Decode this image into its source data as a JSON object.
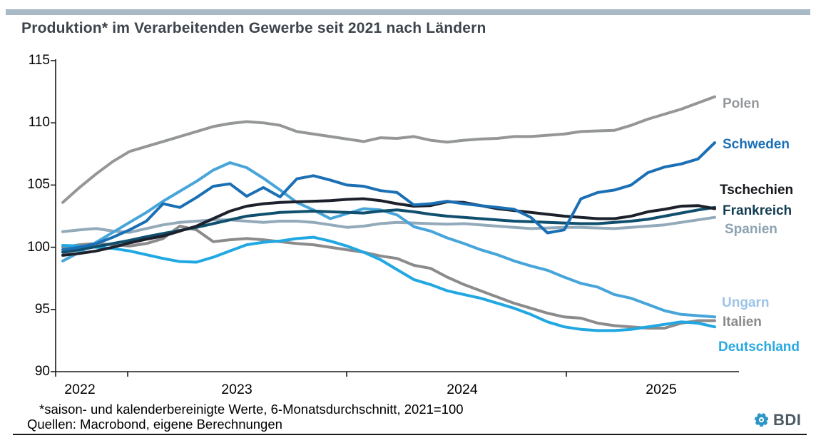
{
  "header": {
    "title": "Produktion* im Verarbeitenden Gewerbe seit 2021 nach Ländern",
    "title_color": "#3d444b",
    "accent_bar_color": "#a7bac5"
  },
  "chart_data": {
    "type": "line",
    "title": "Produktion* im Verarbeitenden Gewerbe seit 2021 nach Ländern",
    "x": {
      "start": "2021-12",
      "freq": "monthly",
      "points": 40
    },
    "x_tick_labels": [
      "2022",
      "2023",
      "2024",
      "2025"
    ],
    "ylim": [
      90,
      115
    ],
    "y_ticks": [
      115,
      110,
      105,
      100,
      95,
      90
    ],
    "grid": false,
    "legend_position": "right-of-lines",
    "axis_color": "#1a1a1a",
    "series": [
      {
        "name": "Polen",
        "color": "#949698",
        "label_color": "#95989b",
        "values": [
          103.6,
          104.8,
          105.9,
          106.9,
          107.7,
          108.1,
          108.5,
          108.9,
          109.3,
          109.7,
          109.95,
          110.1,
          110.0,
          109.8,
          109.3,
          109.1,
          108.9,
          108.7,
          108.5,
          108.8,
          108.75,
          108.9,
          108.6,
          108.45,
          108.6,
          108.7,
          108.75,
          108.9,
          108.9,
          109.0,
          109.1,
          109.3,
          109.35,
          109.4,
          109.8,
          110.3,
          110.7,
          111.1,
          111.6,
          112.1
        ]
      },
      {
        "name": "Schweden",
        "color": "#1b6fb5",
        "label_color": "#1b6fb5",
        "values": [
          99.8,
          100.0,
          100.3,
          100.8,
          101.4,
          102.1,
          103.5,
          103.2,
          104.0,
          104.9,
          105.1,
          104.1,
          104.8,
          104.05,
          105.5,
          105.75,
          105.4,
          105.0,
          104.9,
          104.55,
          104.4,
          103.4,
          103.5,
          103.7,
          103.5,
          103.35,
          103.2,
          103.05,
          102.4,
          101.15,
          101.4,
          103.9,
          104.4,
          104.6,
          105.0,
          106.0,
          106.45,
          106.7,
          107.1,
          108.4
        ]
      },
      {
        "name": "Tschechien",
        "color": "#1c212b",
        "label_color": "#16181d",
        "values": [
          99.35,
          99.5,
          99.7,
          100.0,
          100.35,
          100.65,
          100.9,
          101.3,
          101.7,
          102.3,
          102.9,
          103.3,
          103.5,
          103.6,
          103.65,
          103.7,
          103.75,
          103.85,
          103.9,
          103.75,
          103.5,
          103.3,
          103.35,
          103.65,
          103.6,
          103.35,
          103.1,
          102.95,
          102.8,
          102.65,
          102.5,
          102.4,
          102.3,
          102.3,
          102.5,
          102.85,
          103.05,
          103.3,
          103.35,
          103.1
        ]
      },
      {
        "name": "Frankreich",
        "color": "#10506e",
        "label_color": "#123c52",
        "values": [
          99.6,
          99.8,
          100.05,
          100.3,
          100.55,
          100.85,
          101.1,
          101.35,
          101.6,
          101.9,
          102.2,
          102.5,
          102.65,
          102.8,
          102.85,
          102.9,
          102.85,
          102.8,
          102.75,
          102.9,
          103.0,
          102.85,
          102.65,
          102.5,
          102.4,
          102.3,
          102.2,
          102.1,
          102.05,
          102.0,
          101.95,
          101.9,
          101.9,
          102.0,
          102.1,
          102.25,
          102.5,
          102.75,
          103.0,
          103.2
        ]
      },
      {
        "name": "Spanien",
        "color": "#93aaba",
        "label_color": "#8da3b2",
        "values": [
          101.25,
          101.4,
          101.5,
          101.3,
          101.2,
          101.5,
          101.8,
          102.0,
          102.1,
          102.2,
          102.2,
          102.1,
          102.0,
          102.1,
          102.1,
          102.0,
          101.8,
          101.6,
          101.7,
          101.9,
          102.0,
          101.95,
          101.9,
          101.85,
          101.9,
          101.8,
          101.7,
          101.6,
          101.5,
          101.55,
          101.6,
          101.6,
          101.55,
          101.5,
          101.6,
          101.7,
          101.8,
          102.0,
          102.2,
          102.4
        ]
      },
      {
        "name": "Ungarn",
        "color": "#47a5da",
        "label_color": "#9dc3e6",
        "values": [
          98.9,
          99.6,
          100.4,
          101.2,
          102.0,
          102.8,
          103.7,
          104.5,
          105.3,
          106.2,
          106.8,
          106.4,
          105.55,
          104.6,
          103.6,
          103.0,
          102.3,
          102.7,
          103.1,
          103.0,
          102.6,
          101.65,
          101.3,
          100.75,
          100.3,
          99.8,
          99.4,
          98.9,
          98.5,
          98.15,
          97.6,
          97.1,
          96.8,
          96.2,
          95.9,
          95.4,
          94.9,
          94.6,
          94.5,
          94.4
        ]
      },
      {
        "name": "Italien",
        "color": "#8b8b8b",
        "label_color": "#8a8a8a",
        "values": [
          100.0,
          100.2,
          100.3,
          100.2,
          100.1,
          100.3,
          100.7,
          101.7,
          101.4,
          100.45,
          100.6,
          100.7,
          100.6,
          100.45,
          100.3,
          100.2,
          100.0,
          99.8,
          99.6,
          99.3,
          99.1,
          98.55,
          98.3,
          97.6,
          97.0,
          96.5,
          96.0,
          95.5,
          95.1,
          94.7,
          94.4,
          94.3,
          93.9,
          93.7,
          93.6,
          93.5,
          93.5,
          93.9,
          94.1,
          94.1
        ]
      },
      {
        "name": "Deutschland",
        "color": "#21a8e2",
        "label_color": "#29a9e1",
        "values": [
          100.15,
          100.1,
          100.0,
          99.9,
          99.7,
          99.4,
          99.1,
          98.85,
          98.8,
          99.2,
          99.7,
          100.2,
          100.4,
          100.5,
          100.7,
          100.8,
          100.5,
          100.1,
          99.6,
          99.0,
          98.2,
          97.4,
          97.0,
          96.5,
          96.2,
          95.9,
          95.5,
          95.1,
          94.6,
          94.0,
          93.6,
          93.4,
          93.3,
          93.3,
          93.4,
          93.6,
          93.8,
          94.0,
          93.9,
          93.6
        ]
      }
    ]
  },
  "footnotes": {
    "line1": "*saison- und kalenderbereinigte Werte, 6-Monatsdurchschnitt, 2021=100",
    "line2": "Quellen: Macrobond, eigene Berechnungen"
  },
  "logo": {
    "text": "BDI",
    "text_color": "#4c5a64",
    "icon_color": "#2e96c7",
    "icon_name": "bdi-gear-icon"
  }
}
